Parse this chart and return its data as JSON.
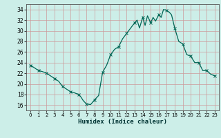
{
  "title": "",
  "xlabel": "Humidex (Indice chaleur)",
  "background_color": "#cceee8",
  "grid_color": "#cc9999",
  "line_color": "#006655",
  "marker_color": "#006655",
  "xlim": [
    -0.5,
    23.5
  ],
  "ylim": [
    15.0,
    35.0
  ],
  "yticks": [
    16,
    18,
    20,
    22,
    24,
    26,
    28,
    30,
    32,
    34
  ],
  "xticks": [
    0,
    1,
    2,
    3,
    4,
    5,
    6,
    7,
    8,
    9,
    10,
    11,
    12,
    13,
    14,
    15,
    16,
    17,
    18,
    19,
    20,
    21,
    22,
    23
  ],
  "x": [
    0,
    0.5,
    1,
    1.5,
    2,
    2.5,
    3,
    3.5,
    4,
    4.5,
    5,
    5.5,
    6,
    6.3,
    6.6,
    7,
    7.5,
    8,
    8.5,
    9,
    9.5,
    10,
    10.5,
    11,
    11.5,
    12,
    12.5,
    13,
    13.3,
    13.6,
    14,
    14.3,
    14.6,
    15,
    15.3,
    15.6,
    16,
    16.3,
    16.6,
    17,
    17.3,
    17.6,
    18,
    18.5,
    19,
    19.5,
    20,
    20.5,
    21,
    21.5,
    22,
    22.5,
    23
  ],
  "y": [
    23.5,
    23.0,
    22.5,
    22.3,
    22.0,
    21.5,
    21.0,
    20.5,
    19.5,
    19.0,
    18.5,
    18.3,
    18.0,
    17.5,
    16.8,
    16.2,
    16.1,
    17.0,
    17.8,
    22.2,
    23.5,
    25.5,
    26.5,
    27.0,
    28.5,
    29.5,
    30.5,
    31.5,
    32.0,
    30.5,
    32.5,
    31.0,
    32.8,
    31.5,
    32.5,
    31.8,
    33.0,
    32.5,
    34.0,
    33.8,
    33.5,
    33.0,
    30.5,
    28.0,
    27.5,
    25.5,
    25.2,
    24.0,
    24.0,
    22.5,
    22.5,
    21.8,
    21.5
  ],
  "marker_x": [
    0,
    1,
    2,
    3,
    4,
    5,
    6,
    7,
    8,
    9,
    10,
    11,
    12,
    13,
    14,
    15,
    16,
    17,
    18,
    19,
    20,
    21,
    22,
    23
  ],
  "marker_y": [
    23.5,
    22.5,
    22.0,
    21.0,
    19.5,
    18.5,
    18.0,
    16.2,
    17.0,
    22.2,
    25.5,
    27.0,
    29.5,
    31.5,
    32.5,
    31.5,
    33.0,
    33.8,
    30.5,
    27.5,
    25.2,
    24.0,
    22.5,
    21.5
  ],
  "tick_fontsize": 5.5,
  "xlabel_fontsize": 6.5
}
